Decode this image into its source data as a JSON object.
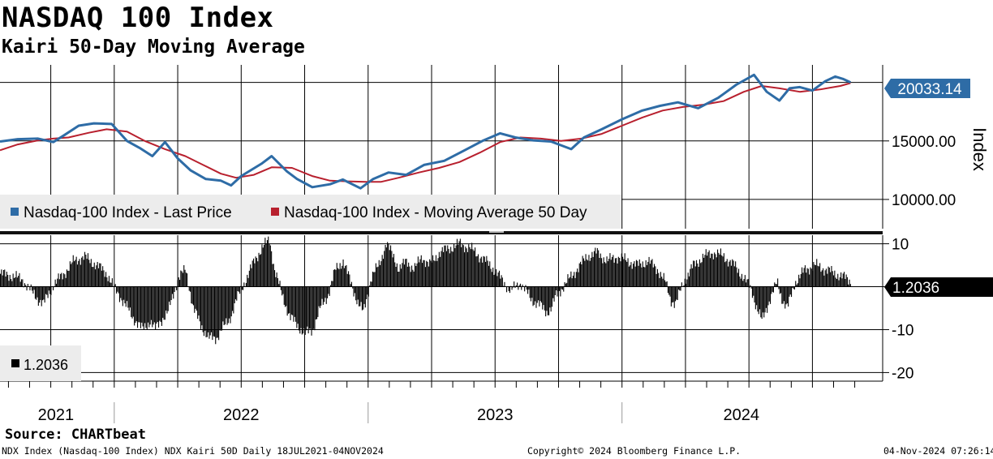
{
  "title": "NASDAQ 100 Index",
  "subtitle": "Kairi 50-Day Moving Average",
  "source": "Source: CHARTbeat",
  "footer": {
    "left": "NDX Index (Nasdaq-100 Index) NDX Kairi 50D  Daily 18JUL2021-04NOV2024",
    "center": "Copyright© 2024 Bloomberg Finance L.P.",
    "right": "04-Nov-2024 07:26:14"
  },
  "colors": {
    "price": "#2e6ca6",
    "ma": "#b8202e",
    "bars": "#000000",
    "grid": "#000000"
  },
  "chart_data": [
    {
      "type": "line",
      "title": "Nasdaq-100 Index",
      "ylabel": "Index",
      "ylim": [
        7500,
        21500
      ],
      "y_ticks": [
        {
          "value": 10000,
          "label": "10000.00"
        },
        {
          "value": 15000,
          "label": "15000.00"
        }
      ],
      "last_value_label": "20033.14",
      "legend": [
        "Nasdaq-100 Index - Last Price",
        "Nasdaq-100 Index - Moving Average 50 Day"
      ],
      "legend_position": "bottom-left",
      "x_labels": [
        "2021",
        "2022",
        "2023",
        "2024"
      ],
      "series": [
        {
          "name": "Nasdaq-100 Index - Last Price",
          "points": [
            [
              2021.55,
              14950
            ],
            [
              2021.62,
              15150
            ],
            [
              2021.7,
              15200
            ],
            [
              2021.76,
              14900
            ],
            [
              2021.8,
              15450
            ],
            [
              2021.86,
              16300
            ],
            [
              2021.92,
              16500
            ],
            [
              2021.99,
              16450
            ],
            [
              2022.05,
              15000
            ],
            [
              2022.1,
              14400
            ],
            [
              2022.15,
              13700
            ],
            [
              2022.2,
              14900
            ],
            [
              2022.25,
              13500
            ],
            [
              2022.3,
              12500
            ],
            [
              2022.36,
              11750
            ],
            [
              2022.42,
              11600
            ],
            [
              2022.46,
              11200
            ],
            [
              2022.5,
              12000
            ],
            [
              2022.58,
              13050
            ],
            [
              2022.62,
              13700
            ],
            [
              2022.68,
              12400
            ],
            [
              2022.72,
              11750
            ],
            [
              2022.78,
              11050
            ],
            [
              2022.85,
              11300
            ],
            [
              2022.9,
              11700
            ],
            [
              2022.97,
              10950
            ],
            [
              2023.02,
              11750
            ],
            [
              2023.08,
              12300
            ],
            [
              2023.15,
              12100
            ],
            [
              2023.22,
              12950
            ],
            [
              2023.3,
              13300
            ],
            [
              2023.38,
              14200
            ],
            [
              2023.45,
              15000
            ],
            [
              2023.52,
              15650
            ],
            [
              2023.58,
              15300
            ],
            [
              2023.65,
              15050
            ],
            [
              2023.72,
              14950
            ],
            [
              2023.8,
              14300
            ],
            [
              2023.85,
              15300
            ],
            [
              2023.92,
              16000
            ],
            [
              2024.0,
              16850
            ],
            [
              2024.08,
              17600
            ],
            [
              2024.15,
              18000
            ],
            [
              2024.22,
              18300
            ],
            [
              2024.3,
              17800
            ],
            [
              2024.38,
              18700
            ],
            [
              2024.45,
              19800
            ],
            [
              2024.52,
              20650
            ],
            [
              2024.57,
              19200
            ],
            [
              2024.62,
              18450
            ],
            [
              2024.66,
              19500
            ],
            [
              2024.7,
              19600
            ],
            [
              2024.75,
              19300
            ],
            [
              2024.8,
              20100
            ],
            [
              2024.84,
              20500
            ],
            [
              2024.87,
              20300
            ],
            [
              2024.9,
              20000
            ]
          ]
        },
        {
          "name": "Nasdaq-100 Index - Moving Average 50 Day",
          "points": [
            [
              2021.55,
              14200
            ],
            [
              2021.62,
              14700
            ],
            [
              2021.7,
              15050
            ],
            [
              2021.76,
              15200
            ],
            [
              2021.82,
              15300
            ],
            [
              2021.9,
              15700
            ],
            [
              2021.97,
              16000
            ],
            [
              2022.05,
              15800
            ],
            [
              2022.12,
              15000
            ],
            [
              2022.2,
              14300
            ],
            [
              2022.28,
              13700
            ],
            [
              2022.35,
              12950
            ],
            [
              2022.42,
              12200
            ],
            [
              2022.48,
              11850
            ],
            [
              2022.55,
              12100
            ],
            [
              2022.62,
              12750
            ],
            [
              2022.7,
              12700
            ],
            [
              2022.78,
              12000
            ],
            [
              2022.85,
              11600
            ],
            [
              2022.92,
              11550
            ],
            [
              2022.99,
              11500
            ],
            [
              2023.05,
              11500
            ],
            [
              2023.12,
              11850
            ],
            [
              2023.2,
              12300
            ],
            [
              2023.28,
              12700
            ],
            [
              2023.36,
              13200
            ],
            [
              2023.44,
              14000
            ],
            [
              2023.52,
              14900
            ],
            [
              2023.6,
              15300
            ],
            [
              2023.68,
              15200
            ],
            [
              2023.76,
              15000
            ],
            [
              2023.84,
              15200
            ],
            [
              2023.92,
              15600
            ],
            [
              2024.0,
              16300
            ],
            [
              2024.08,
              17000
            ],
            [
              2024.16,
              17600
            ],
            [
              2024.24,
              17900
            ],
            [
              2024.32,
              18100
            ],
            [
              2024.4,
              18400
            ],
            [
              2024.48,
              19200
            ],
            [
              2024.55,
              19700
            ],
            [
              2024.62,
              19500
            ],
            [
              2024.7,
              19200
            ],
            [
              2024.78,
              19400
            ],
            [
              2024.86,
              19700
            ],
            [
              2024.9,
              19950
            ]
          ]
        }
      ]
    },
    {
      "type": "bar",
      "title": "NDX Kairi 50D",
      "ylim": [
        -22,
        12
      ],
      "y_ticks": [
        {
          "value": 10,
          "label": "10"
        },
        {
          "value": 0,
          "label": ""
        },
        {
          "value": -10,
          "label": "-10"
        },
        {
          "value": -20,
          "label": "-20"
        }
      ],
      "last_value_label": "1.2036",
      "legend": [
        "1.2036"
      ],
      "legend_position": "bottom-left",
      "points": [
        [
          2021.55,
          3
        ],
        [
          2021.6,
          2.5
        ],
        [
          2021.64,
          1.5
        ],
        [
          2021.67,
          -1
        ],
        [
          2021.7,
          -3
        ],
        [
          2021.72,
          -4
        ],
        [
          2021.76,
          0.5
        ],
        [
          2021.8,
          3
        ],
        [
          2021.84,
          6
        ],
        [
          2021.88,
          7
        ],
        [
          2021.93,
          5
        ],
        [
          2021.97,
          3
        ],
        [
          2022.0,
          -0.5
        ],
        [
          2022.03,
          -3
        ],
        [
          2022.07,
          -7
        ],
        [
          2022.11,
          -10
        ],
        [
          2022.14,
          -8
        ],
        [
          2022.16,
          -10
        ],
        [
          2022.18,
          -8
        ],
        [
          2022.21,
          -6
        ],
        [
          2022.25,
          2
        ],
        [
          2022.28,
          4
        ],
        [
          2022.31,
          -5
        ],
        [
          2022.34,
          -9
        ],
        [
          2022.37,
          -12
        ],
        [
          2022.4,
          -12
        ],
        [
          2022.42,
          -10
        ],
        [
          2022.45,
          -8
        ],
        [
          2022.48,
          -3
        ],
        [
          2022.52,
          2
        ],
        [
          2022.55,
          6
        ],
        [
          2022.58,
          9
        ],
        [
          2022.61,
          11
        ],
        [
          2022.63,
          4
        ],
        [
          2022.66,
          -2
        ],
        [
          2022.69,
          -7
        ],
        [
          2022.72,
          -9
        ],
        [
          2022.75,
          -11
        ],
        [
          2022.78,
          -10
        ],
        [
          2022.81,
          -5
        ],
        [
          2022.84,
          -2
        ],
        [
          2022.87,
          4
        ],
        [
          2022.9,
          6
        ],
        [
          2022.93,
          1
        ],
        [
          2022.96,
          -4
        ],
        [
          2022.98,
          -6
        ],
        [
          2023.01,
          2
        ],
        [
          2023.04,
          5
        ],
        [
          2023.07,
          10
        ],
        [
          2023.1,
          7
        ],
        [
          2023.12,
          4
        ],
        [
          2023.15,
          6
        ],
        [
          2023.18,
          4
        ],
        [
          2023.21,
          7
        ],
        [
          2023.24,
          5
        ],
        [
          2023.28,
          8
        ],
        [
          2023.32,
          9
        ],
        [
          2023.36,
          10
        ],
        [
          2023.4,
          9
        ],
        [
          2023.44,
          7
        ],
        [
          2023.48,
          5
        ],
        [
          2023.52,
          2
        ],
        [
          2023.56,
          -1
        ],
        [
          2023.6,
          1
        ],
        [
          2023.64,
          -3
        ],
        [
          2023.67,
          -4
        ],
        [
          2023.7,
          -6
        ],
        [
          2023.72,
          -5
        ],
        [
          2023.74,
          -2
        ],
        [
          2023.78,
          1
        ],
        [
          2023.82,
          4
        ],
        [
          2023.86,
          7
        ],
        [
          2023.9,
          8
        ],
        [
          2023.94,
          6
        ],
        [
          2023.98,
          7
        ],
        [
          2024.02,
          6
        ],
        [
          2024.06,
          5
        ],
        [
          2024.1,
          6
        ],
        [
          2024.14,
          4
        ],
        [
          2024.17,
          1
        ],
        [
          2024.19,
          -3
        ],
        [
          2024.21,
          -4
        ],
        [
          2024.24,
          1
        ],
        [
          2024.28,
          5
        ],
        [
          2024.32,
          7
        ],
        [
          2024.36,
          8
        ],
        [
          2024.4,
          7
        ],
        [
          2024.44,
          5
        ],
        [
          2024.48,
          2
        ],
        [
          2024.51,
          -1
        ],
        [
          2024.53,
          -5
        ],
        [
          2024.55,
          -8
        ],
        [
          2024.58,
          -3
        ],
        [
          2024.61,
          1
        ],
        [
          2024.63,
          -3
        ],
        [
          2024.65,
          -5
        ],
        [
          2024.68,
          1
        ],
        [
          2024.72,
          4
        ],
        [
          2024.76,
          5
        ],
        [
          2024.8,
          4
        ],
        [
          2024.84,
          3
        ],
        [
          2024.88,
          2
        ],
        [
          2024.9,
          1.2
        ]
      ]
    }
  ]
}
